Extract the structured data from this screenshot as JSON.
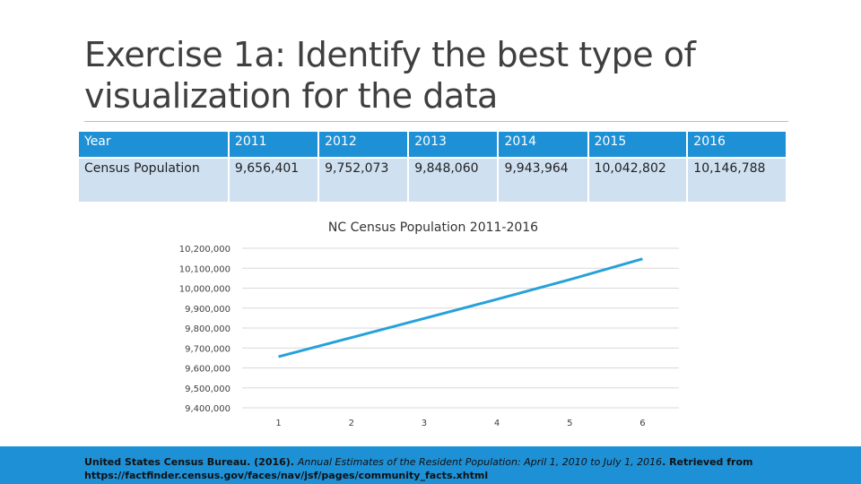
{
  "slide": {
    "title_line1": "Exercise 1a: Identify the best type of",
    "title_line2": "visualization for the data"
  },
  "table": {
    "header_label": "Year",
    "row_label": "Census Population",
    "years": [
      "2011",
      "2012",
      "2013",
      "2014",
      "2015",
      "2016"
    ],
    "populations": [
      "9,656,401",
      "9,752,073",
      "9,848,060",
      "9,943,964",
      "10,042,802",
      "10,146,788"
    ]
  },
  "citation": {
    "author": "United States Census Bureau. (2016). ",
    "work": "Annual Estimates of the Resident Population: April 1, 2010 to July 1, 2016",
    "retrieved": ". Retrieved from https://factfinder.census.gov/faces/nav/jsf/pages/community_facts.xhtml"
  },
  "colors": {
    "accent": "#1e90d6",
    "line": "#27a1da",
    "row_fill": "#cfe0f1"
  },
  "chart_data": {
    "type": "line",
    "title": "NC Census Population 2011-2016",
    "xlabel": "",
    "ylabel": "",
    "x": [
      1,
      2,
      3,
      4,
      5,
      6
    ],
    "x_tick_labels": [
      "1",
      "2",
      "3",
      "4",
      "5",
      "6"
    ],
    "series": [
      {
        "name": "Census Population",
        "values": [
          9656401,
          9752073,
          9848060,
          9943964,
          10042802,
          10146788
        ]
      }
    ],
    "ylim": [
      9400000,
      10200000
    ],
    "y_ticks": [
      9400000,
      9500000,
      9600000,
      9700000,
      9800000,
      9900000,
      10000000,
      10100000,
      10200000
    ],
    "y_tick_labels": [
      "9,400,000",
      "9,500,000",
      "9,600,000",
      "9,700,000",
      "9,800,000",
      "9,900,000",
      "10,000,000",
      "10,100,000",
      "10,200,000"
    ],
    "grid": true,
    "legend": "none"
  }
}
